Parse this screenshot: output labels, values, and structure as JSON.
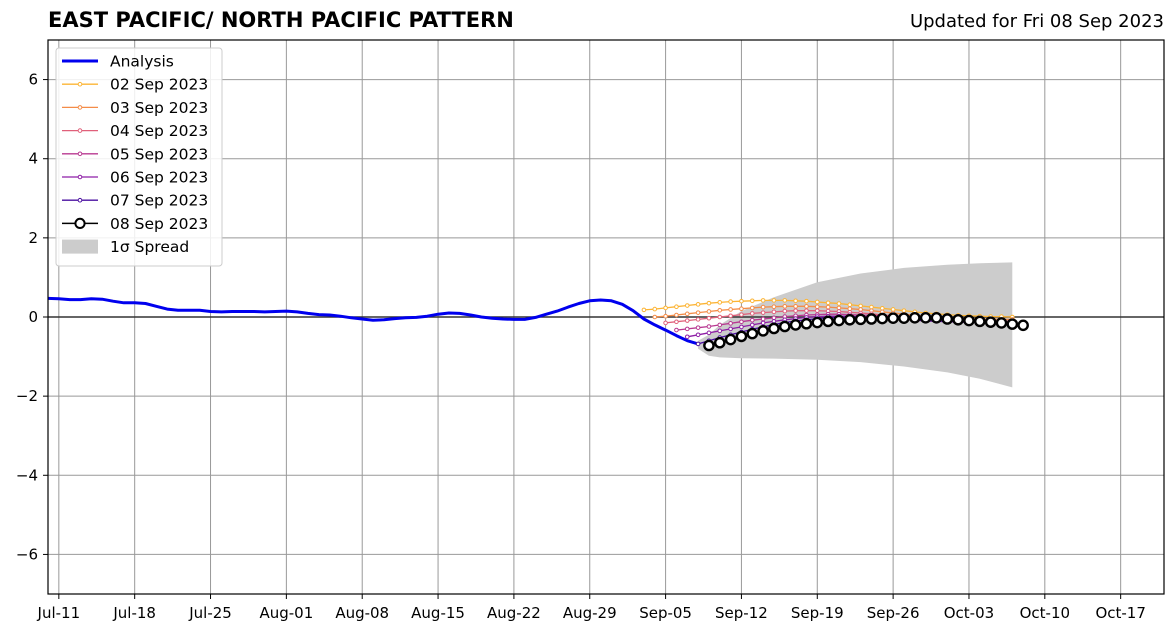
{
  "title": "EAST PACIFIC/ NORTH PACIFIC PATTERN",
  "subtitle": "Updated for Fri 08 Sep 2023",
  "chart_data": {
    "type": "line",
    "title": "EAST PACIFIC/ NORTH PACIFIC PATTERN",
    "subtitle": "Updated for Fri 08 Sep 2023",
    "xlabel": "",
    "ylabel": "",
    "x_type": "date",
    "xlim": [
      "2023-07-10",
      "2023-10-21"
    ],
    "ylim": [
      -7,
      7
    ],
    "x_ticks": [
      {
        "date": "2023-07-11",
        "label": "Jul-11"
      },
      {
        "date": "2023-07-18",
        "label": "Jul-18"
      },
      {
        "date": "2023-07-25",
        "label": "Jul-25"
      },
      {
        "date": "2023-08-01",
        "label": "Aug-01"
      },
      {
        "date": "2023-08-08",
        "label": "Aug-08"
      },
      {
        "date": "2023-08-15",
        "label": "Aug-15"
      },
      {
        "date": "2023-08-22",
        "label": "Aug-22"
      },
      {
        "date": "2023-08-29",
        "label": "Aug-29"
      },
      {
        "date": "2023-09-05",
        "label": "Sep-05"
      },
      {
        "date": "2023-09-12",
        "label": "Sep-12"
      },
      {
        "date": "2023-09-19",
        "label": "Sep-19"
      },
      {
        "date": "2023-09-26",
        "label": "Sep-26"
      },
      {
        "date": "2023-10-03",
        "label": "Oct-03"
      },
      {
        "date": "2023-10-10",
        "label": "Oct-10"
      },
      {
        "date": "2023-10-17",
        "label": "Oct-17"
      }
    ],
    "y_ticks": [
      {
        "value": 6,
        "label": "6"
      },
      {
        "value": 4,
        "label": "4"
      },
      {
        "value": 2,
        "label": "2"
      },
      {
        "value": 0,
        "label": "0"
      },
      {
        "value": -2,
        "label": "−2"
      },
      {
        "value": -4,
        "label": "−4"
      },
      {
        "value": -6,
        "label": "−6"
      }
    ],
    "grid": true,
    "zero_line": true,
    "legend_position": "top-left",
    "legend": [
      {
        "label": "Analysis",
        "color": "#0000ee",
        "style": "line"
      },
      {
        "label": "02 Sep 2023",
        "color": "#fcb434",
        "style": "small-marker"
      },
      {
        "label": "03 Sep 2023",
        "color": "#f48c48",
        "style": "small-marker"
      },
      {
        "label": "04 Sep 2023",
        "color": "#e0607a",
        "style": "small-marker"
      },
      {
        "label": "05 Sep 2023",
        "color": "#b83891",
        "style": "small-marker"
      },
      {
        "label": "06 Sep 2023",
        "color": "#8e1ea6",
        "style": "small-marker"
      },
      {
        "label": "07 Sep 2023",
        "color": "#4a0fa0",
        "style": "small-marker"
      },
      {
        "label": "08 Sep 2023",
        "color": "#000000",
        "style": "big-marker"
      },
      {
        "label": "1σ Spread",
        "color": "#cccccc",
        "style": "patch"
      }
    ],
    "analysis": {
      "name": "Analysis",
      "color": "#0000ee",
      "x": [
        "2023-07-10",
        "2023-07-11",
        "2023-07-12",
        "2023-07-13",
        "2023-07-14",
        "2023-07-15",
        "2023-07-16",
        "2023-07-17",
        "2023-07-18",
        "2023-07-19",
        "2023-07-20",
        "2023-07-21",
        "2023-07-22",
        "2023-07-23",
        "2023-07-24",
        "2023-07-25",
        "2023-07-26",
        "2023-07-27",
        "2023-07-28",
        "2023-07-29",
        "2023-07-30",
        "2023-07-31",
        "2023-08-01",
        "2023-08-02",
        "2023-08-03",
        "2023-08-04",
        "2023-08-05",
        "2023-08-06",
        "2023-08-07",
        "2023-08-08",
        "2023-08-09",
        "2023-08-10",
        "2023-08-11",
        "2023-08-12",
        "2023-08-13",
        "2023-08-14",
        "2023-08-15",
        "2023-08-16",
        "2023-08-17",
        "2023-08-18",
        "2023-08-19",
        "2023-08-20",
        "2023-08-21",
        "2023-08-22",
        "2023-08-23",
        "2023-08-24",
        "2023-08-25",
        "2023-08-26",
        "2023-08-27",
        "2023-08-28",
        "2023-08-29",
        "2023-08-30",
        "2023-08-31",
        "2023-09-01",
        "2023-09-02",
        "2023-09-03",
        "2023-09-04",
        "2023-09-05",
        "2023-09-06",
        "2023-09-07",
        "2023-09-08"
      ],
      "y": [
        0.47,
        0.46,
        0.44,
        0.44,
        0.46,
        0.45,
        0.4,
        0.36,
        0.36,
        0.34,
        0.27,
        0.2,
        0.17,
        0.17,
        0.17,
        0.14,
        0.13,
        0.14,
        0.14,
        0.14,
        0.13,
        0.14,
        0.15,
        0.13,
        0.09,
        0.06,
        0.05,
        0.02,
        -0.02,
        -0.05,
        -0.08,
        -0.07,
        -0.04,
        -0.02,
        -0.01,
        0.02,
        0.07,
        0.1,
        0.09,
        0.05,
        0.0,
        -0.03,
        -0.05,
        -0.06,
        -0.06,
        -0.01,
        0.07,
        0.15,
        0.25,
        0.34,
        0.41,
        0.43,
        0.41,
        0.32,
        0.16,
        -0.05,
        -0.2,
        -0.33,
        -0.47,
        -0.6,
        -0.68
      ]
    },
    "spread": {
      "name": "1σ Spread",
      "color": "#cccccc",
      "x": [
        "2023-09-08",
        "2023-09-09",
        "2023-09-10",
        "2023-09-12",
        "2023-09-15",
        "2023-09-19",
        "2023-09-23",
        "2023-09-27",
        "2023-10-01",
        "2023-10-04",
        "2023-10-07"
      ],
      "upper": [
        -0.6,
        -0.45,
        -0.2,
        0.15,
        0.5,
        0.88,
        1.1,
        1.24,
        1.32,
        1.36,
        1.38
      ],
      "lower": [
        -0.8,
        -0.98,
        -1.02,
        -1.04,
        -1.05,
        -1.08,
        -1.14,
        -1.25,
        -1.4,
        -1.56,
        -1.78
      ]
    },
    "series": [
      {
        "name": "02 Sep 2023",
        "color": "#fcb434",
        "marker": "small",
        "start": "2023-09-03",
        "y": [
          0.18,
          0.2,
          0.23,
          0.26,
          0.29,
          0.32,
          0.35,
          0.37,
          0.39,
          0.4,
          0.41,
          0.42,
          0.42,
          0.42,
          0.41,
          0.4,
          0.38,
          0.36,
          0.34,
          0.31,
          0.28,
          0.25,
          0.22,
          0.19,
          0.16,
          0.13,
          0.1,
          0.08,
          0.06,
          0.04,
          0.03,
          0.02,
          0.01,
          0.01,
          0.0
        ]
      },
      {
        "name": "03 Sep 2023",
        "color": "#f48c48",
        "marker": "small",
        "start": "2023-09-04",
        "y": [
          0.0,
          0.02,
          0.05,
          0.08,
          0.11,
          0.14,
          0.17,
          0.19,
          0.21,
          0.23,
          0.25,
          0.26,
          0.27,
          0.27,
          0.27,
          0.26,
          0.25,
          0.23,
          0.21,
          0.19,
          0.16,
          0.13,
          0.1,
          0.07,
          0.04,
          0.02,
          0.0,
          -0.02,
          -0.03,
          -0.04,
          -0.05,
          -0.05,
          -0.06,
          -0.06
        ]
      },
      {
        "name": "04 Sep 2023",
        "color": "#e0607a",
        "marker": "small",
        "start": "2023-09-05",
        "y": [
          -0.15,
          -0.12,
          -0.09,
          -0.06,
          -0.03,
          0.0,
          0.03,
          0.06,
          0.09,
          0.11,
          0.13,
          0.15,
          0.16,
          0.16,
          0.16,
          0.15,
          0.14,
          0.12,
          0.1,
          0.08,
          0.05,
          0.03,
          0.01,
          -0.01,
          -0.03,
          -0.05,
          -0.06,
          -0.07,
          -0.08,
          -0.09,
          -0.09,
          -0.1,
          -0.1
        ]
      },
      {
        "name": "05 Sep 2023",
        "color": "#b83891",
        "marker": "small",
        "start": "2023-09-06",
        "y": [
          -0.33,
          -0.3,
          -0.27,
          -0.24,
          -0.2,
          -0.16,
          -0.12,
          -0.08,
          -0.05,
          -0.02,
          0.01,
          0.03,
          0.05,
          0.06,
          0.07,
          0.07,
          0.06,
          0.05,
          0.04,
          0.02,
          0.0,
          -0.02,
          -0.04,
          -0.06,
          -0.08,
          -0.09,
          -0.1,
          -0.11,
          -0.12,
          -0.12,
          -0.13,
          -0.13
        ]
      },
      {
        "name": "06 Sep 2023",
        "color": "#8e1ea6",
        "marker": "small",
        "start": "2023-09-07",
        "y": [
          -0.5,
          -0.45,
          -0.4,
          -0.35,
          -0.3,
          -0.25,
          -0.2,
          -0.15,
          -0.11,
          -0.07,
          -0.04,
          -0.01,
          0.01,
          0.02,
          0.02,
          0.02,
          0.01,
          0.0,
          -0.02,
          -0.04,
          -0.06,
          -0.08,
          -0.1,
          -0.11,
          -0.12,
          -0.13,
          -0.14,
          -0.14,
          -0.15,
          -0.15,
          -0.15
        ]
      },
      {
        "name": "07 Sep 2023",
        "color": "#4a0fa0",
        "marker": "small",
        "start": "2023-09-08",
        "y": [
          -0.68,
          -0.6,
          -0.52,
          -0.45,
          -0.38,
          -0.31,
          -0.25,
          -0.19,
          -0.14,
          -0.1,
          -0.07,
          -0.04,
          -0.02,
          -0.01,
          0.0,
          0.0,
          -0.01,
          -0.02,
          -0.03,
          -0.05,
          -0.07,
          -0.09,
          -0.1,
          -0.11,
          -0.12,
          -0.13,
          -0.13,
          -0.14,
          -0.14,
          -0.14
        ]
      },
      {
        "name": "08 Sep 2023",
        "color": "#000000",
        "marker": "big",
        "start": "2023-09-09",
        "y": [
          -0.72,
          -0.65,
          -0.57,
          -0.49,
          -0.42,
          -0.35,
          -0.29,
          -0.24,
          -0.2,
          -0.17,
          -0.14,
          -0.11,
          -0.09,
          -0.07,
          -0.06,
          -0.05,
          -0.04,
          -0.03,
          -0.03,
          -0.02,
          -0.02,
          -0.02,
          -0.05,
          -0.07,
          -0.09,
          -0.11,
          -0.13,
          -0.15,
          -0.18,
          -0.21
        ]
      }
    ]
  }
}
